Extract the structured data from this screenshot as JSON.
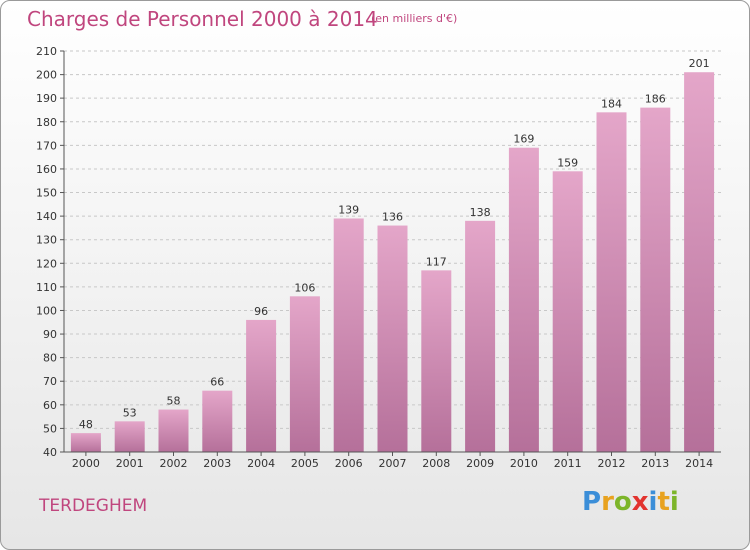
{
  "header": {
    "title": "Charges de Personnel 2000 à 2014",
    "subtitle": "(en milliers d'€)"
  },
  "footer": {
    "commune": "TERDEGHEM",
    "logo_text": "Proxiti"
  },
  "colors": {
    "accent": "#c0467e",
    "bar_top": "#e4a6c9",
    "bar_bottom": "#b5709a"
  },
  "chart_data": {
    "type": "bar",
    "title": "Charges de Personnel 2000 à 2014",
    "subtitle": "(en milliers d'€)",
    "categories": [
      "2000",
      "2001",
      "2002",
      "2003",
      "2004",
      "2005",
      "2006",
      "2007",
      "2008",
      "2009",
      "2010",
      "2011",
      "2012",
      "2013",
      "2014"
    ],
    "values": [
      48,
      53,
      58,
      66,
      96,
      106,
      139,
      136,
      117,
      138,
      169,
      159,
      184,
      186,
      201
    ],
    "ylim": [
      40,
      210
    ],
    "yticks": [
      40,
      50,
      60,
      70,
      80,
      90,
      100,
      110,
      120,
      130,
      140,
      150,
      160,
      170,
      180,
      190,
      200,
      210
    ],
    "grid": true,
    "legend": "none"
  }
}
